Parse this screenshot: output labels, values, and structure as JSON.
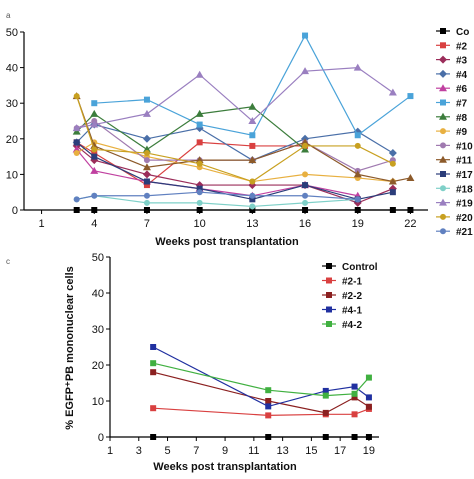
{
  "figure": {
    "panels": [
      {
        "letter": "a",
        "xlabel": "Weeks post transplantation",
        "ylabel": ""
      },
      {
        "letter": "c",
        "xlabel": "Weeks post transplantation",
        "ylabel": "% EGFP⁺PB mononuclear cells"
      }
    ]
  },
  "chart_data": [
    {
      "type": "line",
      "title": "",
      "xlabel": "Weeks post transplantation",
      "ylabel": "",
      "xlim": [
        0,
        23
      ],
      "ylim": [
        0,
        50
      ],
      "xticks": [
        1,
        4,
        7,
        10,
        13,
        16,
        19,
        22
      ],
      "yticks": [
        0,
        10,
        20,
        30,
        40,
        50
      ],
      "legend": "right",
      "grid": false,
      "series": [
        {
          "name": "Co",
          "color": "#000000",
          "marker": "square",
          "x": [
            3,
            4,
            7,
            10,
            13,
            16,
            19,
            21,
            22
          ],
          "y": [
            0,
            0,
            0,
            0,
            0,
            0,
            0,
            0,
            0
          ]
        },
        {
          "name": "#2",
          "color": "#d94040",
          "marker": "square",
          "x": [
            3,
            4,
            7,
            10,
            13,
            16
          ],
          "y": [
            19,
            16,
            7,
            19,
            18,
            18
          ]
        },
        {
          "name": "#3",
          "color": "#9b2d5a",
          "marker": "diamond",
          "x": [
            3,
            4,
            7,
            10,
            13,
            16,
            19,
            21
          ],
          "y": [
            18,
            14,
            10,
            7,
            7,
            7,
            2,
            6
          ]
        },
        {
          "name": "#4",
          "color": "#4a6fa8",
          "marker": "diamond",
          "x": [
            3,
            4,
            7,
            10,
            13,
            16,
            19,
            21
          ],
          "y": [
            19,
            24,
            20,
            23,
            14,
            20,
            22,
            16
          ]
        },
        {
          "name": "#6",
          "color": "#c040a0",
          "marker": "triangle",
          "x": [
            3,
            4,
            7,
            10,
            13,
            16,
            19
          ],
          "y": [
            17,
            11,
            8,
            6,
            4,
            7,
            4
          ]
        },
        {
          "name": "#7",
          "color": "#4aa3d9",
          "marker": "square",
          "x": [
            4,
            7,
            10,
            13,
            16,
            19,
            22
          ],
          "y": [
            30,
            31,
            24,
            21,
            49,
            21,
            32
          ]
        },
        {
          "name": "#8",
          "color": "#3c7d3c",
          "marker": "triangle",
          "x": [
            3,
            4,
            7,
            10,
            13,
            16
          ],
          "y": [
            22,
            27,
            17,
            27,
            29,
            17
          ]
        },
        {
          "name": "#9",
          "color": "#e8b040",
          "marker": "circle",
          "x": [
            3,
            4,
            7,
            10,
            13,
            16,
            19,
            21
          ],
          "y": [
            16,
            19,
            15,
            12,
            8,
            10,
            9,
            8
          ]
        },
        {
          "name": "#10",
          "color": "#a07ab0",
          "marker": "circle",
          "x": [
            3,
            4,
            7,
            10,
            13,
            16,
            19,
            21
          ],
          "y": [
            23,
            25,
            14,
            14,
            14,
            19,
            11,
            14
          ]
        },
        {
          "name": "#11",
          "color": "#8c5a2a",
          "marker": "triangle",
          "x": [
            3,
            4,
            7,
            10,
            13,
            16,
            19,
            21,
            22
          ],
          "y": [
            32,
            18,
            12,
            14,
            14,
            19,
            10,
            8,
            9
          ]
        },
        {
          "name": "#17",
          "color": "#2b3d7a",
          "marker": "square",
          "x": [
            3,
            4,
            7,
            10,
            13,
            16,
            19,
            21
          ],
          "y": [
            19,
            15,
            8,
            6,
            3,
            7,
            3,
            5
          ]
        },
        {
          "name": "#18",
          "color": "#7fd0c8",
          "marker": "circle",
          "x": [
            3,
            4,
            7,
            10,
            13,
            16,
            19
          ],
          "y": [
            3,
            4,
            2,
            2,
            1,
            2,
            3
          ]
        },
        {
          "name": "#19",
          "color": "#9a7fc0",
          "marker": "triangle",
          "x": [
            3,
            4,
            7,
            10,
            13,
            16,
            19,
            21
          ],
          "y": [
            23,
            24,
            27,
            38,
            25,
            39,
            40,
            33
          ]
        },
        {
          "name": "#20",
          "color": "#c8a020",
          "marker": "circle",
          "x": [
            3,
            4,
            7,
            10,
            13,
            16,
            19,
            21
          ],
          "y": [
            32,
            17,
            16,
            13,
            8,
            18,
            18,
            13
          ]
        },
        {
          "name": "#21",
          "color": "#6080c0",
          "marker": "circle",
          "x": [
            3,
            4,
            7,
            10,
            13,
            16,
            19
          ],
          "y": [
            3,
            4,
            4,
            5,
            4,
            4,
            3
          ]
        }
      ]
    },
    {
      "type": "line",
      "title": "",
      "xlabel": "Weeks post transplantation",
      "ylabel": "% EGFP⁺PB mononuclear cells",
      "xlim": [
        1,
        19.7
      ],
      "ylim": [
        0,
        50
      ],
      "xticks": [
        1,
        3,
        5,
        7,
        9,
        11,
        13,
        15,
        17,
        19
      ],
      "yticks": [
        0,
        10,
        20,
        30,
        40,
        50
      ],
      "legend": "top-right",
      "grid": false,
      "series": [
        {
          "name": "Control",
          "color": "#000000",
          "marker": "square",
          "x": [
            4,
            12,
            16,
            18,
            19
          ],
          "y": [
            0,
            0,
            0,
            0,
            0
          ]
        },
        {
          "name": "#2-1",
          "color": "#d94040",
          "marker": "square",
          "x": [
            4,
            12,
            16,
            18,
            19
          ],
          "y": [
            8,
            6,
            6.3,
            6.3,
            7.8
          ]
        },
        {
          "name": "#2-2",
          "color": "#8b2020",
          "marker": "square",
          "x": [
            4,
            12,
            16,
            18,
            19
          ],
          "y": [
            18,
            10,
            6.7,
            11,
            8.4
          ]
        },
        {
          "name": "#4-1",
          "color": "#2030a0",
          "marker": "square",
          "x": [
            4,
            12,
            16,
            18,
            19
          ],
          "y": [
            25,
            8.5,
            12.8,
            14,
            11
          ]
        },
        {
          "name": "#4-2",
          "color": "#40b040",
          "marker": "square",
          "x": [
            4,
            12,
            16,
            18,
            19
          ],
          "y": [
            20.5,
            13,
            11.5,
            12,
            16.5
          ]
        }
      ]
    }
  ]
}
